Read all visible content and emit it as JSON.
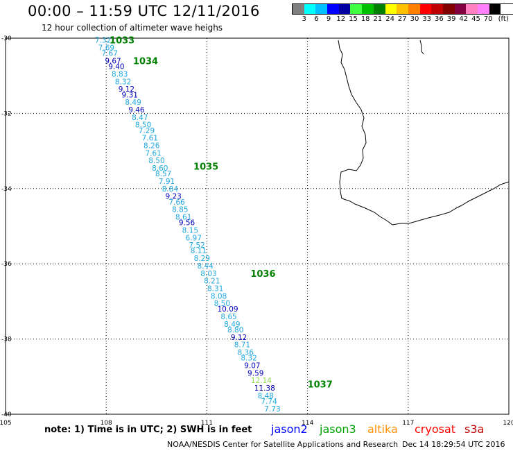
{
  "header": {
    "title": "00:00 – 11:59 UTC 12/11/2016",
    "subtitle": "12 hour collection of altimeter wave heighs"
  },
  "legend": {
    "unit": "(ft)",
    "colors": [
      "#808080",
      "#00ffff",
      "#00c0ff",
      "#0000ff",
      "#0000a0",
      "#40ff40",
      "#00c000",
      "#008000",
      "#ffff00",
      "#ffc000",
      "#ff8000",
      "#ff0000",
      "#c00000",
      "#800000",
      "#800040",
      "#ff80c0",
      "#ff80ff",
      "#000000"
    ],
    "ticks": [
      "3",
      "6",
      "9",
      "12",
      "15",
      "18",
      "21",
      "24",
      "27",
      "30",
      "33",
      "36",
      "39",
      "42",
      "45",
      "70"
    ]
  },
  "axes": {
    "lon_ticks": [
      "105",
      "108",
      "111",
      "114",
      "117",
      "120"
    ],
    "lat_ticks": [
      "-30",
      "-32",
      "-34",
      "-36",
      "-38",
      "-40"
    ]
  },
  "chart_data": {
    "type": "scatter",
    "xlim": [
      105,
      120
    ],
    "ylim": [
      -40,
      -30
    ],
    "pass_labels": [
      {
        "text": "1033",
        "lon": 108.1,
        "lat": -30.05
      },
      {
        "text": "1034",
        "lon": 108.8,
        "lat": -30.6
      },
      {
        "text": "1035",
        "lon": 110.6,
        "lat": -33.4
      },
      {
        "text": "1036",
        "lon": 112.3,
        "lat": -36.25
      },
      {
        "text": "1037",
        "lon": 114.0,
        "lat": -39.2
      }
    ],
    "points": [
      {
        "v": "7.32",
        "lon": 107.6,
        "lat": -30.05,
        "c": "#20a8e0"
      },
      {
        "v": "7.69",
        "lon": 107.7,
        "lat": -30.25,
        "c": "#20a8e0"
      },
      {
        "v": "7.67",
        "lon": 107.8,
        "lat": -30.4,
        "c": "#20a8e0"
      },
      {
        "v": "9.67",
        "lon": 107.9,
        "lat": -30.6,
        "c": "#0000c0"
      },
      {
        "v": "9.40",
        "lon": 108.0,
        "lat": -30.75,
        "c": "#0000c0"
      },
      {
        "v": "8.83",
        "lon": 108.1,
        "lat": -30.95,
        "c": "#20a8e0"
      },
      {
        "v": "8.32",
        "lon": 108.2,
        "lat": -31.15,
        "c": "#20a8e0"
      },
      {
        "v": "9.12",
        "lon": 108.3,
        "lat": -31.35,
        "c": "#0000c0"
      },
      {
        "v": "9.31",
        "lon": 108.4,
        "lat": -31.5,
        "c": "#0000c0"
      },
      {
        "v": "8.49",
        "lon": 108.5,
        "lat": -31.7,
        "c": "#20a8e0"
      },
      {
        "v": "9.46",
        "lon": 108.6,
        "lat": -31.9,
        "c": "#0000c0"
      },
      {
        "v": "8.47",
        "lon": 108.7,
        "lat": -32.1,
        "c": "#20a8e0"
      },
      {
        "v": "8.50",
        "lon": 108.8,
        "lat": -32.3,
        "c": "#20a8e0"
      },
      {
        "v": "7.29",
        "lon": 108.9,
        "lat": -32.45,
        "c": "#20a8e0"
      },
      {
        "v": "7.61",
        "lon": 109.0,
        "lat": -32.65,
        "c": "#20a8e0"
      },
      {
        "v": "8.26",
        "lon": 109.05,
        "lat": -32.85,
        "c": "#20a8e0"
      },
      {
        "v": "7.61",
        "lon": 109.1,
        "lat": -33.05,
        "c": "#20a8e0"
      },
      {
        "v": "8.50",
        "lon": 109.2,
        "lat": -33.25,
        "c": "#20a8e0"
      },
      {
        "v": "8.60",
        "lon": 109.3,
        "lat": -33.45,
        "c": "#20a8e0"
      },
      {
        "v": "8.57",
        "lon": 109.4,
        "lat": -33.6,
        "c": "#20a8e0"
      },
      {
        "v": "7.91",
        "lon": 109.5,
        "lat": -33.8,
        "c": "#20a8e0"
      },
      {
        "v": "8.84",
        "lon": 109.6,
        "lat": -34.0,
        "c": "#20a8e0"
      },
      {
        "v": "9.23",
        "lon": 109.7,
        "lat": -34.2,
        "c": "#0000c0"
      },
      {
        "v": "7.66",
        "lon": 109.8,
        "lat": -34.35,
        "c": "#20a8e0"
      },
      {
        "v": "8.85",
        "lon": 109.9,
        "lat": -34.55,
        "c": "#20a8e0"
      },
      {
        "v": "8.61",
        "lon": 110.0,
        "lat": -34.75,
        "c": "#20a8e0"
      },
      {
        "v": "9.56",
        "lon": 110.1,
        "lat": -34.9,
        "c": "#0000c0"
      },
      {
        "v": "8.15",
        "lon": 110.2,
        "lat": -35.1,
        "c": "#20a8e0"
      },
      {
        "v": "6.97",
        "lon": 110.3,
        "lat": -35.3,
        "c": "#20a8e0"
      },
      {
        "v": "7.52",
        "lon": 110.4,
        "lat": -35.5,
        "c": "#20a8e0"
      },
      {
        "v": "8.11",
        "lon": 110.45,
        "lat": -35.65,
        "c": "#20a8e0"
      },
      {
        "v": "8.29",
        "lon": 110.55,
        "lat": -35.85,
        "c": "#20a8e0"
      },
      {
        "v": "8.44",
        "lon": 110.65,
        "lat": -36.05,
        "c": "#20a8e0"
      },
      {
        "v": "8.03",
        "lon": 110.75,
        "lat": -36.25,
        "c": "#20a8e0"
      },
      {
        "v": "8.21",
        "lon": 110.85,
        "lat": -36.45,
        "c": "#20a8e0"
      },
      {
        "v": "8.31",
        "lon": 110.95,
        "lat": -36.65,
        "c": "#20a8e0"
      },
      {
        "v": "8.08",
        "lon": 111.05,
        "lat": -36.85,
        "c": "#20a8e0"
      },
      {
        "v": "8.50",
        "lon": 111.15,
        "lat": -37.05,
        "c": "#20a8e0"
      },
      {
        "v": "10.09",
        "lon": 111.25,
        "lat": -37.2,
        "c": "#0000c0"
      },
      {
        "v": "8.65",
        "lon": 111.35,
        "lat": -37.4,
        "c": "#20a8e0"
      },
      {
        "v": "8.49",
        "lon": 111.45,
        "lat": -37.6,
        "c": "#20a8e0"
      },
      {
        "v": "8.80",
        "lon": 111.55,
        "lat": -37.75,
        "c": "#20a8e0"
      },
      {
        "v": "9.12",
        "lon": 111.65,
        "lat": -37.95,
        "c": "#0000c0"
      },
      {
        "v": "8.71",
        "lon": 111.75,
        "lat": -38.15,
        "c": "#20a8e0"
      },
      {
        "v": "8.36",
        "lon": 111.85,
        "lat": -38.35,
        "c": "#20a8e0"
      },
      {
        "v": "8.32",
        "lon": 111.95,
        "lat": -38.5,
        "c": "#20a8e0"
      },
      {
        "v": "9.07",
        "lon": 112.05,
        "lat": -38.7,
        "c": "#0000c0"
      },
      {
        "v": "9.59",
        "lon": 112.15,
        "lat": -38.9,
        "c": "#0000c0"
      },
      {
        "v": "12.14",
        "lon": 112.25,
        "lat": -39.1,
        "c": "#90d850"
      },
      {
        "v": "11.38",
        "lon": 112.35,
        "lat": -39.3,
        "c": "#0000a0"
      },
      {
        "v": "8.48",
        "lon": 112.45,
        "lat": -39.5,
        "c": "#20a8e0"
      },
      {
        "v": "7.74",
        "lon": 112.55,
        "lat": -39.65,
        "c": "#20a8e0"
      },
      {
        "v": "7.73",
        "lon": 112.65,
        "lat": -39.85,
        "c": "#20a8e0"
      }
    ]
  },
  "footer": {
    "note": "note: 1) Time is in UTC; 2) SWH is in feet",
    "missions": [
      {
        "name": "jason2",
        "color": "#0000ff"
      },
      {
        "name": "jason3",
        "color": "#00a000"
      },
      {
        "name": "altika",
        "color": "#ff9000"
      },
      {
        "name": "cryosat",
        "color": "#ff0000"
      },
      {
        "name": "s3a",
        "color": "#c00000"
      }
    ],
    "credit": "NOAA/NESDIS Center for Satellite Applications and Research",
    "timestamp": "Dec 14 18:29:54 UTC 2016"
  }
}
